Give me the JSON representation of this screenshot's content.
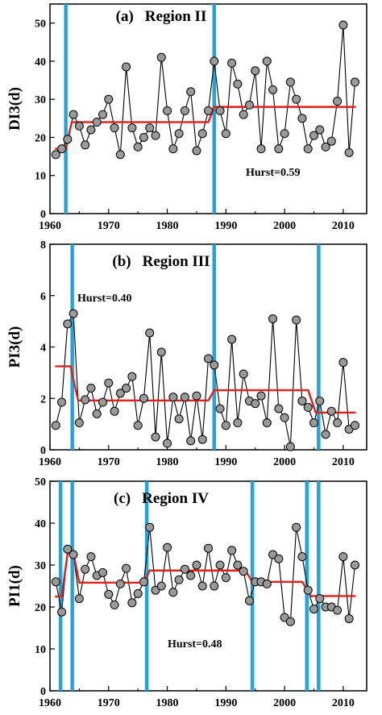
{
  "chart_data": [
    {
      "type": "line",
      "panel_label": "(a)",
      "title": "Region II",
      "ylabel": "DI3(d)",
      "xlabel": "",
      "xlim": [
        1960,
        2014
      ],
      "ylim": [
        0,
        55
      ],
      "xticks": [
        1960,
        1970,
        1980,
        1990,
        2000,
        2010
      ],
      "yticks": [
        0,
        10,
        20,
        30,
        40,
        50
      ],
      "annotation": "Hurst=0.59",
      "x": [
        1961,
        1962,
        1963,
        1964,
        1965,
        1966,
        1967,
        1968,
        1969,
        1970,
        1971,
        1972,
        1973,
        1974,
        1975,
        1976,
        1977,
        1978,
        1979,
        1980,
        1981,
        1982,
        1983,
        1984,
        1985,
        1986,
        1987,
        1988,
        1989,
        1990,
        1991,
        1992,
        1993,
        1994,
        1995,
        1996,
        1997,
        1998,
        1999,
        2000,
        2001,
        2002,
        2003,
        2004,
        2005,
        2006,
        2007,
        2008,
        2009,
        2010,
        2011,
        2012
      ],
      "y": [
        15.5,
        17,
        19.5,
        26,
        23,
        18,
        22,
        24,
        26,
        30,
        22.5,
        15.5,
        38.5,
        22.5,
        17.5,
        20,
        22.5,
        20.5,
        41,
        27,
        17,
        21,
        27,
        32,
        16.5,
        21,
        27,
        40,
        27,
        21,
        39.5,
        34,
        26,
        28.5,
        37.5,
        17,
        40,
        32.5,
        17,
        21,
        34.5,
        30,
        25,
        17,
        20.5,
        22,
        17.5,
        19,
        29.5,
        49.5,
        16,
        34.5
      ],
      "breakpoints": [
        1962.7,
        1988
      ],
      "step_segments": [
        {
          "x": [
            1961,
            1962.7
          ],
          "y": [
            17,
            17
          ]
        },
        {
          "x": [
            1962.7,
            1963.7
          ],
          "y": [
            17,
            24
          ]
        },
        {
          "x": [
            1963.7,
            1987
          ],
          "y": [
            24,
            24
          ]
        },
        {
          "x": [
            1987,
            1988
          ],
          "y": [
            24,
            28
          ]
        },
        {
          "x": [
            1988,
            2012
          ],
          "y": [
            28,
            28
          ]
        }
      ]
    },
    {
      "type": "line",
      "panel_label": "(b)",
      "title": "Region III",
      "ylabel": "PI3(d)",
      "xlabel": "",
      "xlim": [
        1960,
        2014
      ],
      "ylim": [
        0,
        8
      ],
      "xticks": [
        1960,
        1970,
        1980,
        1990,
        2000,
        2010
      ],
      "yticks": [
        0,
        2,
        4,
        6,
        8
      ],
      "annotation": "Hurst=0.40",
      "x": [
        1961,
        1962,
        1963,
        1964,
        1965,
        1966,
        1967,
        1968,
        1969,
        1970,
        1971,
        1972,
        1973,
        1974,
        1975,
        1976,
        1977,
        1978,
        1979,
        1980,
        1981,
        1982,
        1983,
        1984,
        1985,
        1986,
        1987,
        1988,
        1989,
        1990,
        1991,
        1992,
        1993,
        1994,
        1995,
        1996,
        1997,
        1998,
        1999,
        2000,
        2001,
        2002,
        2003,
        2004,
        2005,
        2006,
        2007,
        2008,
        2009,
        2010,
        2011,
        2012
      ],
      "y": [
        0.95,
        1.85,
        4.9,
        5.3,
        1.05,
        1.95,
        2.4,
        1.4,
        1.85,
        2.6,
        1.5,
        2.2,
        2.4,
        2.85,
        0.95,
        2,
        4.55,
        0.5,
        3.8,
        0.25,
        2.05,
        1.2,
        2.05,
        0.35,
        2.1,
        0.4,
        3.55,
        3.3,
        1.6,
        0.95,
        4.3,
        1.05,
        2.95,
        1.9,
        1.8,
        2.1,
        1.05,
        5.1,
        1.6,
        1.25,
        0.12,
        5.05,
        1.9,
        1.65,
        1.05,
        1.9,
        0.6,
        1.5,
        1.05,
        3.4,
        0.8,
        0.95
      ],
      "breakpoints": [
        1963.8,
        1988,
        2005.8
      ],
      "step_segments": [
        {
          "x": [
            1961,
            1963.5
          ],
          "y": [
            3.25,
            3.25
          ]
        },
        {
          "x": [
            1963.5,
            1964.8
          ],
          "y": [
            3.25,
            1.92
          ]
        },
        {
          "x": [
            1964.8,
            1987
          ],
          "y": [
            1.92,
            1.92
          ]
        },
        {
          "x": [
            1987,
            1988
          ],
          "y": [
            1.92,
            2.32
          ]
        },
        {
          "x": [
            1988,
            2004
          ],
          "y": [
            2.32,
            2.32
          ]
        },
        {
          "x": [
            2004,
            2005.3
          ],
          "y": [
            2.32,
            1.45
          ]
        },
        {
          "x": [
            2005.3,
            2012
          ],
          "y": [
            1.45,
            1.45
          ]
        }
      ]
    },
    {
      "type": "line",
      "panel_label": "(c)",
      "title": "Region IV",
      "ylabel": "PI1(d)",
      "xlabel": "",
      "xlim": [
        1960,
        2014
      ],
      "ylim": [
        0,
        50
      ],
      "xticks": [
        1960,
        1970,
        1980,
        1990,
        2000,
        2010
      ],
      "yticks": [
        0,
        10,
        20,
        30,
        40,
        50
      ],
      "annotation": "Hurst=0.48",
      "x": [
        1961,
        1962,
        1963,
        1964,
        1965,
        1966,
        1967,
        1968,
        1969,
        1970,
        1971,
        1972,
        1973,
        1974,
        1975,
        1976,
        1977,
        1978,
        1979,
        1980,
        1981,
        1982,
        1983,
        1984,
        1985,
        1986,
        1987,
        1988,
        1989,
        1990,
        1991,
        1992,
        1993,
        1994,
        1995,
        1996,
        1997,
        1998,
        1999,
        2000,
        2001,
        2002,
        2003,
        2004,
        2005,
        2006,
        2007,
        2008,
        2009,
        2010,
        2011,
        2012
      ],
      "y": [
        26,
        18.8,
        33.8,
        32.5,
        22,
        29,
        32,
        27.5,
        28.2,
        23,
        20.5,
        25.5,
        29.2,
        21,
        23.2,
        26,
        39,
        24,
        25,
        34.2,
        23.5,
        26.5,
        29,
        27.5,
        30,
        25,
        34,
        25,
        30,
        27,
        33.5,
        30,
        28.5,
        21.5,
        26,
        26,
        25.5,
        32.5,
        31.5,
        17.5,
        16.5,
        39,
        32,
        24,
        19.5,
        22,
        20,
        20,
        19.2,
        32,
        17.2,
        30
      ],
      "breakpoints": [
        1961.8,
        1963.8,
        1976.5,
        1994.5,
        2003.8,
        2005.8
      ],
      "step_segments": [
        {
          "x": [
            1961,
            1962
          ],
          "y": [
            22.5,
            22.5
          ]
        },
        {
          "x": [
            1962,
            1963
          ],
          "y": [
            22.5,
            32.8
          ]
        },
        {
          "x": [
            1963,
            1964
          ],
          "y": [
            32.8,
            32.8
          ]
        },
        {
          "x": [
            1964,
            1965
          ],
          "y": [
            32.8,
            25.8
          ]
        },
        {
          "x": [
            1965,
            1976
          ],
          "y": [
            25.8,
            25.8
          ]
        },
        {
          "x": [
            1976,
            1977
          ],
          "y": [
            25.8,
            28.7
          ]
        },
        {
          "x": [
            1977,
            1993.3
          ],
          "y": [
            28.7,
            28.7
          ]
        },
        {
          "x": [
            1993.3,
            1994.5
          ],
          "y": [
            28.7,
            26
          ]
        },
        {
          "x": [
            1994.5,
            2003
          ],
          "y": [
            26,
            26
          ]
        },
        {
          "x": [
            2003,
            2004.5
          ],
          "y": [
            26,
            22.6
          ]
        },
        {
          "x": [
            2004.5,
            2012
          ],
          "y": [
            22.6,
            22.6
          ]
        }
      ]
    }
  ],
  "colors": {
    "breakpoint": "#1ca6e2",
    "step": "#e0201b",
    "series": "#000000",
    "marker_fill": "#9a9a9a"
  }
}
